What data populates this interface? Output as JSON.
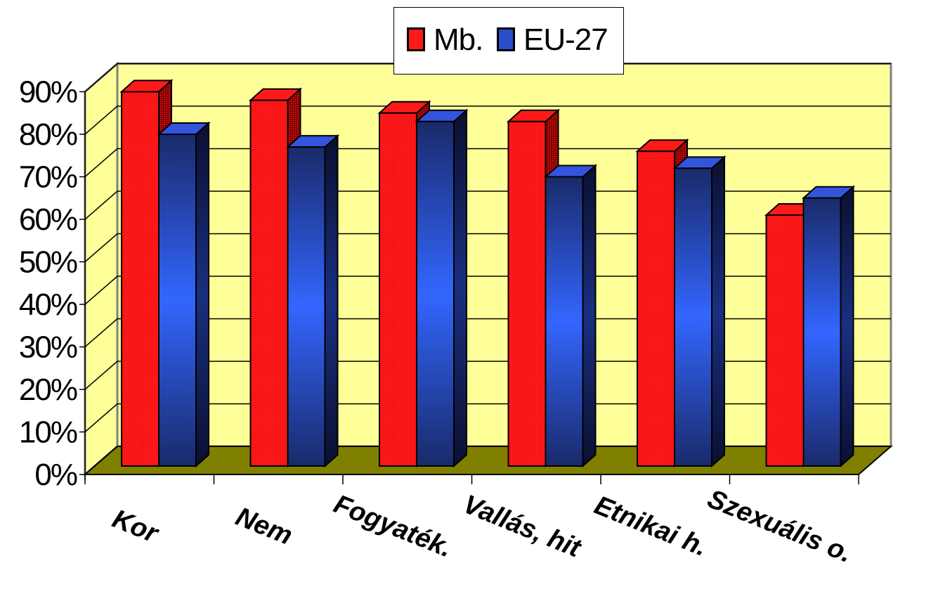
{
  "chart_data": {
    "type": "bar",
    "categories": [
      "Kor",
      "Nem",
      "Fogyaték.",
      "Vallás, hit",
      "Etnikai h.",
      "Szexuális o."
    ],
    "series": [
      {
        "name": "Mb.",
        "values": [
          90,
          88,
          85,
          83,
          76,
          61
        ],
        "color": "#ff1a1a"
      },
      {
        "name": "EU-27",
        "values": [
          80,
          77,
          83,
          70,
          72,
          65
        ],
        "color": "#2a4dcc"
      }
    ],
    "ylim": [
      0,
      90
    ],
    "yticks": [
      "0%",
      "10%",
      "20%",
      "30%",
      "40%",
      "50%",
      "60%",
      "70%",
      "80%",
      "90%"
    ],
    "grid": true,
    "legend_position": "top",
    "wall_color": "#ffff99",
    "floor_color": "#808000",
    "xlabel": "",
    "ylabel": "",
    "title": ""
  }
}
